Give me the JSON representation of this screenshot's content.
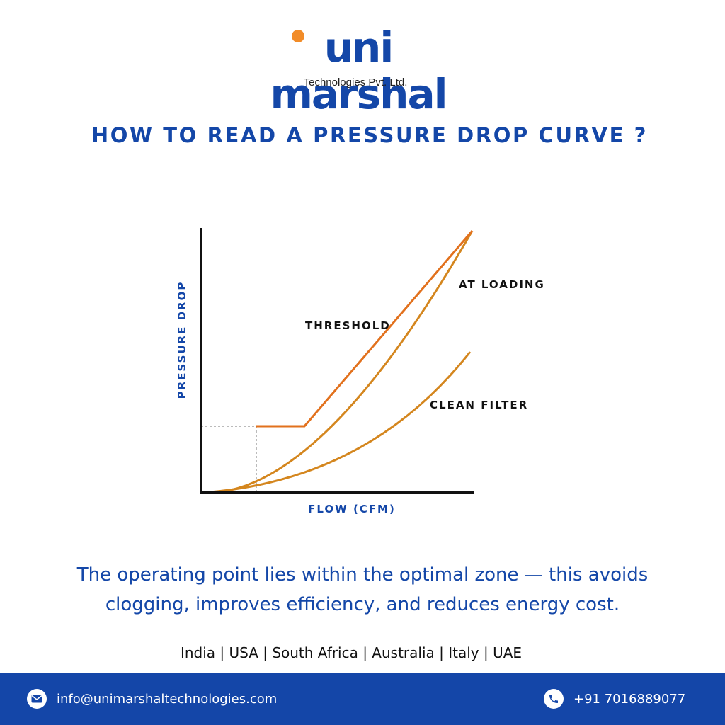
{
  "colors": {
    "brand_blue": "#1447a8",
    "accent_orange": "#f28c28",
    "threshold_line": "#e2711d",
    "curve_line": "#d4861e",
    "axis": "#111111",
    "footer_bg": "#1446a8"
  },
  "brand": {
    "name": "uni marshal",
    "subtitle": "Technologies Pvt. Ltd."
  },
  "headline": "HOW TO READ A PRESSURE DROP CURVE ?",
  "diagram": {
    "y_axis_label": "PRESSURE DROP",
    "x_axis_label": "FLOW (CFM)",
    "curve_labels": {
      "threshold": "THRESHOLD",
      "at_loading": "AT LOADING",
      "clean_filter": "CLEAN FILTER"
    }
  },
  "note": {
    "line1": "The operating point lies within the optimal zone — this avoids",
    "line2": "clogging, improves efficiency, and reduces energy cost."
  },
  "countries": "India | USA | South Africa | Australia | Italy | UAE",
  "footer": {
    "email": "info@unimarshaltechnologies.com",
    "email_icon": "mail-icon",
    "phone": "+91 7016889077",
    "phone_icon": "phone-icon"
  }
}
